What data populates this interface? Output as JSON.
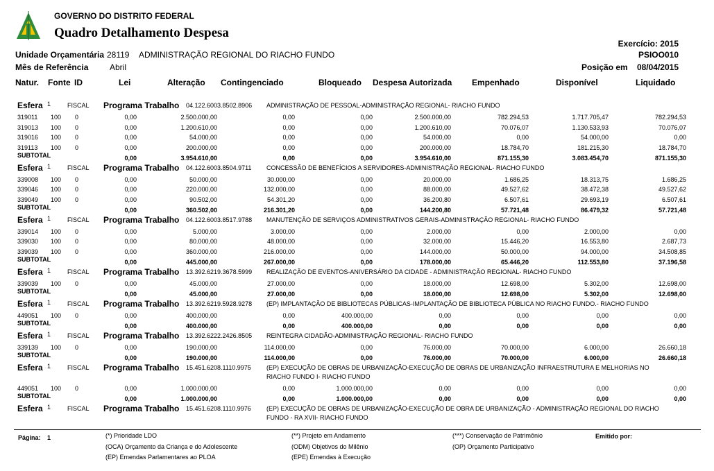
{
  "header": {
    "org": "GOVERNO DO DISTRITO FEDERAL",
    "title": "Quadro Detalhamento Despesa",
    "exercicio": "Exercício: 2015",
    "report_code": "PSIOO010",
    "unit_label": "Unidade Orçamentária",
    "unit_code": "28119",
    "unit_name": "ADMINISTRAÇÃO REGIONAL DO RIACHO FUNDO",
    "month_label": "Mês de Referência",
    "month": "Abril",
    "position_label": "Posição em",
    "position_date": "08/04/2015"
  },
  "columns": [
    "Natur.",
    "Fonte",
    "ID",
    "Lei",
    "Alteração",
    "Contingenciado",
    "Bloqueado",
    "Despesa Autorizada",
    "Empenhado",
    "Disponível",
    "Liquidado"
  ],
  "labels": {
    "esfera": "Esfera",
    "programa": "Programa Trabalho",
    "subtotal": "SUBTOTAL"
  },
  "sections": [
    {
      "esfera": "1",
      "fiscal": "FISCAL",
      "programa_code": "04.122.6003.8502.8906",
      "programa_name": [
        "ADMINISTRAÇÃO DE PESSOAL-ADMINISTRAÇÃO REGIONAL- RIACHO FUNDO"
      ],
      "rows": [
        [
          "319011",
          "100",
          "0",
          "0,00",
          "2.500.000,00",
          "0,00",
          "0,00",
          "2.500.000,00",
          "782.294,53",
          "1.717.705,47",
          "782.294,53"
        ],
        [
          "319013",
          "100",
          "0",
          "0,00",
          "1.200.610,00",
          "0,00",
          "0,00",
          "1.200.610,00",
          "70.076,07",
          "1.130.533,93",
          "70.076,07"
        ],
        [
          "319016",
          "100",
          "0",
          "0,00",
          "54.000,00",
          "0,00",
          "0,00",
          "54.000,00",
          "0,00",
          "54.000,00",
          "0,00"
        ],
        [
          "319113",
          "100",
          "0",
          "0,00",
          "200.000,00",
          "0,00",
          "0,00",
          "200.000,00",
          "18.784,70",
          "181.215,30",
          "18.784,70"
        ]
      ],
      "subtotal": [
        "0,00",
        "3.954.610,00",
        "0,00",
        "0,00",
        "3.954.610,00",
        "871.155,30",
        "3.083.454,70",
        "871.155,30"
      ]
    },
    {
      "esfera": "1",
      "fiscal": "FISCAL",
      "programa_code": "04.122.6003.8504.9711",
      "programa_name": [
        "CONCESSÃO DE BENEFÍCIOS A SERVIDORES-ADMINISTRAÇÃO REGIONAL- RIACHO FUNDO"
      ],
      "rows": [
        [
          "339008",
          "100",
          "0",
          "0,00",
          "50.000,00",
          "30.000,00",
          "0,00",
          "20.000,00",
          "1.686,25",
          "18.313,75",
          "1.686,25"
        ],
        [
          "339046",
          "100",
          "0",
          "0,00",
          "220.000,00",
          "132.000,00",
          "0,00",
          "88.000,00",
          "49.527,62",
          "38.472,38",
          "49.527,62"
        ],
        [
          "339049",
          "100",
          "0",
          "0,00",
          "90.502,00",
          "54.301,20",
          "0,00",
          "36.200,80",
          "6.507,61",
          "29.693,19",
          "6.507,61"
        ]
      ],
      "subtotal": [
        "0,00",
        "360.502,00",
        "216.301,20",
        "0,00",
        "144.200,80",
        "57.721,48",
        "86.479,32",
        "57.721,48"
      ]
    },
    {
      "esfera": "1",
      "fiscal": "FISCAL",
      "programa_code": "04.122.6003.8517.9788",
      "programa_name": [
        "MANUTENÇÃO DE SERVIÇOS ADMINISTRATIVOS GERAIS-ADMINISTRAÇÃO REGIONAL- RIACHO FUNDO"
      ],
      "rows": [
        [
          "339014",
          "100",
          "0",
          "0,00",
          "5.000,00",
          "3.000,00",
          "0,00",
          "2.000,00",
          "0,00",
          "2.000,00",
          "0,00"
        ],
        [
          "339030",
          "100",
          "0",
          "0,00",
          "80.000,00",
          "48.000,00",
          "0,00",
          "32.000,00",
          "15.446,20",
          "16.553,80",
          "2.687,73"
        ],
        [
          "339039",
          "100",
          "0",
          "0,00",
          "360.000,00",
          "216.000,00",
          "0,00",
          "144.000,00",
          "50.000,00",
          "94.000,00",
          "34.508,85"
        ]
      ],
      "subtotal": [
        "0,00",
        "445.000,00",
        "267.000,00",
        "0,00",
        "178.000,00",
        "65.446,20",
        "112.553,80",
        "37.196,58"
      ]
    },
    {
      "esfera": "1",
      "fiscal": "FISCAL",
      "programa_code": "13.392.6219.3678.5999",
      "programa_name": [
        "REALIZAÇÃO DE EVENTOS-ANIVERSÁRIO DA CIDADE - ADMINISTRAÇÃO REGIONAL- RIACHO FUNDO"
      ],
      "rows": [
        [
          "339039",
          "100",
          "0",
          "0,00",
          "45.000,00",
          "27.000,00",
          "0,00",
          "18.000,00",
          "12.698,00",
          "5.302,00",
          "12.698,00"
        ]
      ],
      "subtotal": [
        "0,00",
        "45.000,00",
        "27.000,00",
        "0,00",
        "18.000,00",
        "12.698,00",
        "5.302,00",
        "12.698,00"
      ]
    },
    {
      "esfera": "1",
      "fiscal": "FISCAL",
      "programa_code": "13.392.6219.5928.9278",
      "programa_name": [
        "(EP) IMPLANTAÇÃO  DE BIBLIOTECAS PÚBLICAS-IMPLANTAÇÃO DE BIBLIOTECA PÚBLICA NO RIACHO FUNDO.- RIACHO FUNDO"
      ],
      "rows": [
        [
          "449051",
          "100",
          "0",
          "0,00",
          "400.000,00",
          "0,00",
          "400.000,00",
          "0,00",
          "0,00",
          "0,00",
          "0,00"
        ]
      ],
      "subtotal": [
        "0,00",
        "400.000,00",
        "0,00",
        "400.000,00",
        "0,00",
        "0,00",
        "0,00",
        "0,00"
      ]
    },
    {
      "esfera": "1",
      "fiscal": "FISCAL",
      "programa_code": "13.392.6222.2426.8505",
      "programa_name": [
        "REINTEGRA CIDADÃO-ADMINISTRAÇÃO REGIONAL- RIACHO FUNDO"
      ],
      "rows": [
        [
          "339139",
          "100",
          "0",
          "0,00",
          "190.000,00",
          "114.000,00",
          "0,00",
          "76.000,00",
          "70.000,00",
          "6.000,00",
          "26.660,18"
        ]
      ],
      "subtotal": [
        "0,00",
        "190.000,00",
        "114.000,00",
        "0,00",
        "76.000,00",
        "70.000,00",
        "6.000,00",
        "26.660,18"
      ]
    },
    {
      "esfera": "1",
      "fiscal": "FISCAL",
      "programa_code": "15.451.6208.1110.9975",
      "programa_name": [
        "(EP) EXECUÇÃO DE OBRAS DE URBANIZAÇÃO-EXECUÇÃO DE OBRAS DE URBANIZAÇÃO INFRAESTRUTURA E MELHORIAS NO",
        "RIACHO FUNDO I- RIACHO FUNDO"
      ],
      "rows": [
        [
          "449051",
          "100",
          "0",
          "0,00",
          "1.000.000,00",
          "0,00",
          "1.000.000,00",
          "0,00",
          "0,00",
          "0,00",
          "0,00"
        ]
      ],
      "subtotal": [
        "0,00",
        "1.000.000,00",
        "0,00",
        "1.000.000,00",
        "0,00",
        "0,00",
        "0,00",
        "0,00"
      ]
    },
    {
      "esfera": "1",
      "fiscal": "FISCAL",
      "programa_code": "15.451.6208.1110.9976",
      "programa_name": [
        "(EP) EXECUÇÃO DE OBRAS DE URBANIZAÇÃO-EXECUÇÃO DE OBRA DE URBANIZAÇÃO - ADMINISTRAÇÃO REGIONAL DO RIACHO",
        "FUNDO - RA XVII- RIACHO FUNDO"
      ],
      "rows": []
    }
  ],
  "footer": {
    "page_label": "Página:",
    "page": "1",
    "emitted_label": "Emitido por:",
    "notes": [
      [
        "(*) Prioridade LDO",
        "(**) Projeto em Andamento",
        "(***) Conservação de Patrimônio"
      ],
      [
        "(OCA) Orçamento da Criança e do Adolescente",
        "(ODM) Objetivos do Milênio",
        "(OP) Orçamento Participativo"
      ],
      [
        "(EP) Emendas Parlamentares ao PLOA",
        "(EPE) Emendas à Execução"
      ]
    ]
  }
}
